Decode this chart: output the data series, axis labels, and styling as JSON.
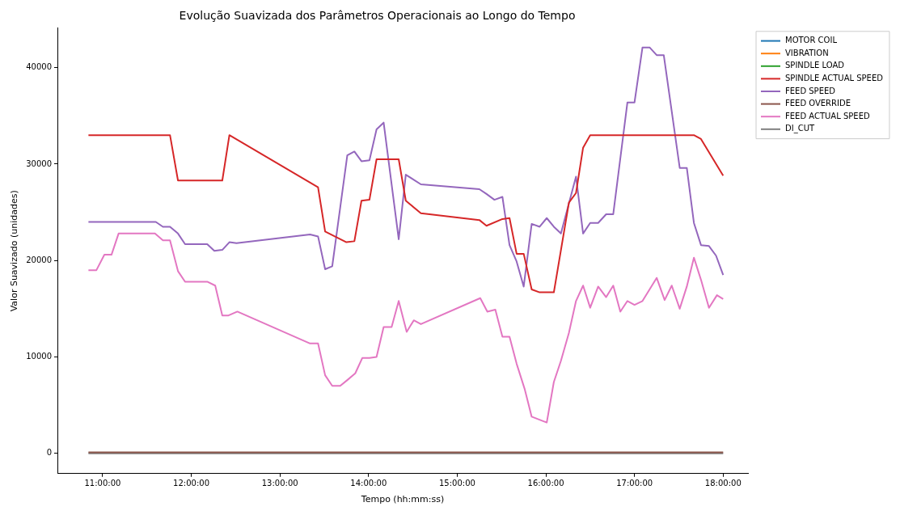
{
  "chart_data": {
    "type": "line",
    "title": "Evolução Suavizada dos Parâmetros Operacionais ao Longo do Tempo",
    "xlabel": "Tempo (hh:mm:ss)",
    "ylabel": "Valor Suavizado (unidades)",
    "xlim": [
      10.49,
      18.28
    ],
    "ylim": [
      -2100,
      44100
    ],
    "xticks": [
      {
        "value": 11,
        "label": "11:00:00"
      },
      {
        "value": 12,
        "label": "12:00:00"
      },
      {
        "value": 13,
        "label": "13:00:00"
      },
      {
        "value": 14,
        "label": "14:00:00"
      },
      {
        "value": 15,
        "label": "15:00:00"
      },
      {
        "value": 16,
        "label": "16:00:00"
      },
      {
        "value": 17,
        "label": "17:00:00"
      },
      {
        "value": 18,
        "label": "18:00:00"
      }
    ],
    "yticks": [
      0,
      10000,
      20000,
      30000,
      40000
    ],
    "grid": false,
    "legend": "top right",
    "line_style": "solid",
    "marker": "none",
    "series": [
      {
        "name": "MOTOR COIL",
        "color": "#1f77b4"
      },
      {
        "name": "VIBRATION",
        "color": "#ff7f0e"
      },
      {
        "name": "SPINDLE LOAD",
        "color": "#2ca02c"
      },
      {
        "name": "SPINDLE ACTUAL SPEED",
        "color": "#d62728",
        "x": [
          10.84,
          11.76,
          11.85,
          12.35,
          12.43,
          13.43,
          13.51,
          13.75,
          13.84,
          13.92,
          14.01,
          14.09,
          14.34,
          14.42,
          14.59,
          15.25,
          15.33,
          15.51,
          15.59,
          15.67,
          15.75,
          15.84,
          15.93,
          16.09,
          16.26,
          16.34,
          16.42,
          16.5,
          17.67,
          17.75,
          18.0
        ],
        "values": [
          33000,
          33000,
          28300,
          28300,
          33000,
          27600,
          23000,
          21900,
          22000,
          26200,
          26300,
          30500,
          30500,
          26200,
          24900,
          24200,
          23600,
          24300,
          24400,
          20700,
          20700,
          17000,
          16700,
          16700,
          26000,
          27000,
          31700,
          33000,
          33000,
          32600,
          28800
        ]
      },
      {
        "name": "FEED SPEED",
        "color": "#9467bd",
        "x": [
          10.84,
          11.6,
          11.68,
          11.76,
          11.85,
          11.93,
          12.18,
          12.26,
          12.35,
          12.43,
          12.51,
          13.34,
          13.43,
          13.51,
          13.59,
          13.76,
          13.84,
          13.92,
          14.01,
          14.09,
          14.17,
          14.34,
          14.42,
          14.59,
          15.25,
          15.33,
          15.42,
          15.51,
          15.59,
          15.67,
          15.75,
          15.84,
          15.93,
          16.01,
          16.09,
          16.17,
          16.34,
          16.42,
          16.5,
          16.59,
          16.68,
          16.76,
          16.92,
          17.0,
          17.09,
          17.17,
          17.25,
          17.33,
          17.51,
          17.59,
          17.67,
          17.75,
          17.84,
          17.92,
          18.0
        ],
        "values": [
          24000,
          24000,
          23500,
          23500,
          22800,
          21700,
          21700,
          21000,
          21100,
          21900,
          21800,
          22700,
          22500,
          19100,
          19400,
          30900,
          31300,
          30300,
          30400,
          33600,
          34300,
          22200,
          28900,
          27900,
          27400,
          26900,
          26300,
          26600,
          21600,
          19900,
          17300,
          23800,
          23500,
          24400,
          23500,
          22800,
          28700,
          22800,
          23900,
          23900,
          24800,
          24800,
          36400,
          36400,
          42100,
          42100,
          41300,
          41300,
          29600,
          29600,
          23900,
          21600,
          21500,
          20500,
          18500
        ]
      },
      {
        "name": "FEED OVERRIDE",
        "color": "#8c564b",
        "x": [
          10.84,
          18.0
        ],
        "values": [
          100,
          100
        ]
      },
      {
        "name": "FEED ACTUAL SPEED",
        "color": "#e377c2",
        "x": [
          10.84,
          10.93,
          11.02,
          11.1,
          11.18,
          11.59,
          11.68,
          11.76,
          11.85,
          11.93,
          12.18,
          12.27,
          12.35,
          12.42,
          12.52,
          13.34,
          13.43,
          13.51,
          13.59,
          13.68,
          13.76,
          13.85,
          13.93,
          14.01,
          14.09,
          14.17,
          14.26,
          14.34,
          14.43,
          14.51,
          14.59,
          15.26,
          15.34,
          15.43,
          15.51,
          15.59,
          15.67,
          15.76,
          15.84,
          16.01,
          16.09,
          16.17,
          16.26,
          16.34,
          16.42,
          16.5,
          16.59,
          16.68,
          16.76,
          16.84,
          16.92,
          17.0,
          17.09,
          17.17,
          17.25,
          17.34,
          17.42,
          17.51,
          17.59,
          17.67,
          17.75,
          17.84,
          17.93,
          18.0
        ],
        "values": [
          19000,
          19000,
          20600,
          20600,
          22800,
          22800,
          22100,
          22100,
          18900,
          17800,
          17800,
          17400,
          14300,
          14300,
          14700,
          11400,
          11400,
          8100,
          7000,
          7000,
          7600,
          8300,
          9900,
          9900,
          10000,
          13100,
          13100,
          15800,
          12600,
          13800,
          13400,
          16100,
          14700,
          14900,
          12100,
          12100,
          9300,
          6700,
          3800,
          3200,
          7400,
          9600,
          12500,
          15800,
          17400,
          15100,
          17300,
          16200,
          17400,
          14700,
          15800,
          15400,
          15800,
          17000,
          18200,
          15900,
          17400,
          15000,
          17300,
          20300,
          18000,
          15100,
          16400,
          16000
        ]
      },
      {
        "name": "DI_CUT",
        "color": "#7f7f7f",
        "x": [
          10.84,
          18.0
        ],
        "values": [
          0,
          0
        ]
      }
    ]
  }
}
